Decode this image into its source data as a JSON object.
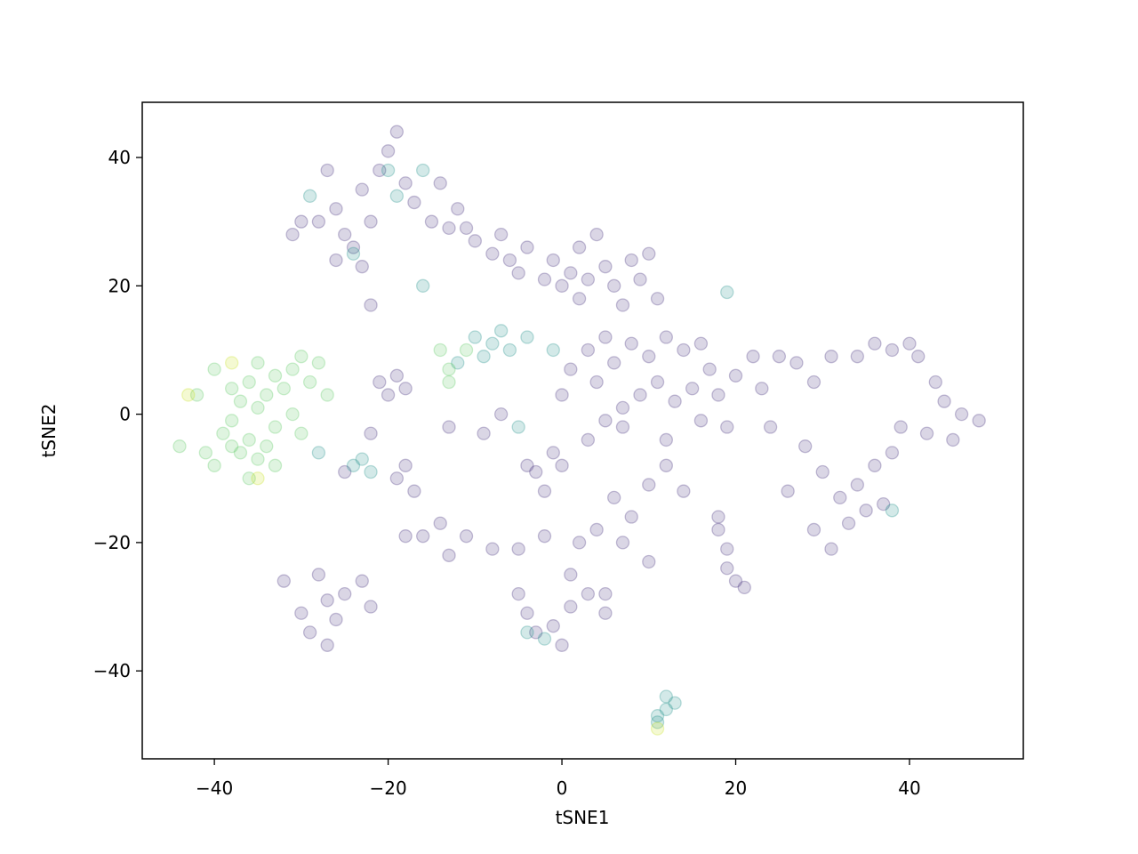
{
  "chart_data": {
    "type": "scatter",
    "x_label": "tSNE1",
    "y_label": "tSNE2",
    "xlim": [
      -48.3,
      53.1
    ],
    "ylim": [
      -53.7,
      48.6
    ],
    "xticks": [
      {
        "value": -40,
        "label": "−40"
      },
      {
        "value": -20,
        "label": "−20"
      },
      0,
      20,
      40
    ],
    "yticks": [
      {
        "value": -40,
        "label": "−40"
      },
      {
        "value": -20,
        "label": "−20"
      },
      0,
      20,
      40
    ],
    "grid": false,
    "series": [
      {
        "color": "#46327e",
        "x": [
          -28,
          -26,
          -25,
          -24,
          -22,
          -21,
          -20,
          -18,
          -17,
          -15,
          -13,
          -11,
          -10,
          -8,
          -6,
          -5,
          -4,
          -7,
          -12,
          -14,
          -19,
          -23,
          -27,
          -30,
          -31,
          -26,
          -23,
          -22,
          -1,
          0,
          1,
          2,
          3,
          4,
          5,
          6,
          8,
          9,
          10,
          11,
          7,
          2,
          -2,
          3,
          5,
          6,
          8,
          10,
          11,
          12,
          14,
          16,
          17,
          15,
          13,
          18,
          20,
          22,
          9,
          7,
          4,
          1,
          0,
          19,
          16,
          12,
          25,
          27,
          29,
          31,
          34,
          36,
          38,
          40,
          41,
          43,
          44,
          46,
          48,
          45,
          42,
          39,
          36,
          34,
          32,
          35,
          38,
          37,
          30,
          28,
          26,
          29,
          31,
          33,
          24,
          23,
          -3,
          -2,
          0,
          3,
          5,
          6,
          8,
          10,
          12,
          14,
          4,
          7,
          10,
          2,
          -2,
          1,
          -1,
          5,
          18,
          19,
          19,
          20,
          21,
          18,
          -4,
          -3,
          -1,
          0,
          1,
          3,
          5,
          -5,
          -32,
          -30,
          -29,
          -27,
          -26,
          -25,
          -23,
          -22,
          -28,
          -27,
          -21,
          -20,
          -19,
          -18,
          -22,
          -19,
          -18,
          -17,
          -16,
          -14,
          -13,
          -11,
          -8,
          -5,
          -18,
          -7,
          -9,
          -4,
          -13,
          -25,
          7
        ],
        "values": [
          30,
          32,
          28,
          26,
          30,
          38,
          41,
          36,
          33,
          30,
          29,
          29,
          27,
          25,
          24,
          22,
          26,
          28,
          32,
          36,
          44,
          35,
          38,
          30,
          28,
          24,
          23,
          17,
          24,
          20,
          22,
          26,
          21,
          28,
          23,
          20,
          24,
          21,
          25,
          18,
          17,
          18,
          21,
          10,
          12,
          8,
          11,
          9,
          5,
          12,
          10,
          11,
          7,
          4,
          2,
          3,
          6,
          9,
          3,
          1,
          5,
          7,
          3,
          -2,
          -1,
          -4,
          9,
          8,
          5,
          9,
          9,
          11,
          10,
          11,
          9,
          5,
          2,
          0,
          -1,
          -4,
          -3,
          -2,
          -8,
          -11,
          -13,
          -15,
          -6,
          -14,
          -9,
          -5,
          -12,
          -18,
          -21,
          -17,
          -2,
          4,
          -9,
          -12,
          -8,
          -4,
          -1,
          -13,
          -16,
          -11,
          -8,
          -12,
          -18,
          -20,
          -23,
          -20,
          -19,
          -25,
          -6,
          -28,
          -18,
          -21,
          -24,
          -26,
          -27,
          -16,
          -31,
          -34,
          -33,
          -36,
          -30,
          -28,
          -31,
          -28,
          -26,
          -31,
          -34,
          -29,
          -32,
          -28,
          -26,
          -30,
          -25,
          -36,
          5,
          3,
          6,
          4,
          -3,
          -10,
          -8,
          -12,
          -19,
          -17,
          -22,
          -19,
          -21,
          -21,
          -19,
          0,
          -3,
          -8,
          -2,
          -9,
          -2
        ]
      },
      {
        "color": "#21918c",
        "x": [
          -20,
          -16,
          -19,
          -29,
          -24,
          -16,
          -10,
          -8,
          -7,
          -9,
          -12,
          -6,
          -4,
          -24,
          -22,
          -23,
          11,
          12,
          11,
          12,
          13,
          -4,
          -2,
          19,
          38,
          -28,
          -5,
          -1
        ],
        "values": [
          38,
          38,
          34,
          34,
          25,
          20,
          12,
          11,
          13,
          9,
          8,
          10,
          12,
          -8,
          -9,
          -7,
          -47,
          -46,
          -48,
          -44,
          -45,
          -34,
          -35,
          19,
          -15,
          -6,
          -2,
          10
        ]
      },
      {
        "color": "#5ec962",
        "x": [
          -40,
          -38,
          -37,
          -36,
          -35,
          -34,
          -33,
          -32,
          -31,
          -30,
          -29,
          -28,
          -27,
          -39,
          -38,
          -37,
          -36,
          -35,
          -34,
          -33,
          -40,
          -36,
          -38,
          -35,
          -42,
          -44,
          -41,
          -33,
          -31,
          -30,
          -13,
          -14,
          -11,
          -13
        ],
        "values": [
          7,
          4,
          2,
          5,
          8,
          3,
          6,
          4,
          7,
          9,
          5,
          8,
          3,
          -3,
          -5,
          -6,
          -4,
          -7,
          -5,
          -2,
          -8,
          -10,
          -1,
          1,
          3,
          -5,
          -6,
          -8,
          0,
          -3,
          7,
          10,
          10,
          5
        ]
      },
      {
        "color": "#c8e020",
        "x": [
          -35,
          11,
          -38,
          -43
        ],
        "values": [
          -10,
          -49,
          8,
          3
        ]
      }
    ]
  }
}
